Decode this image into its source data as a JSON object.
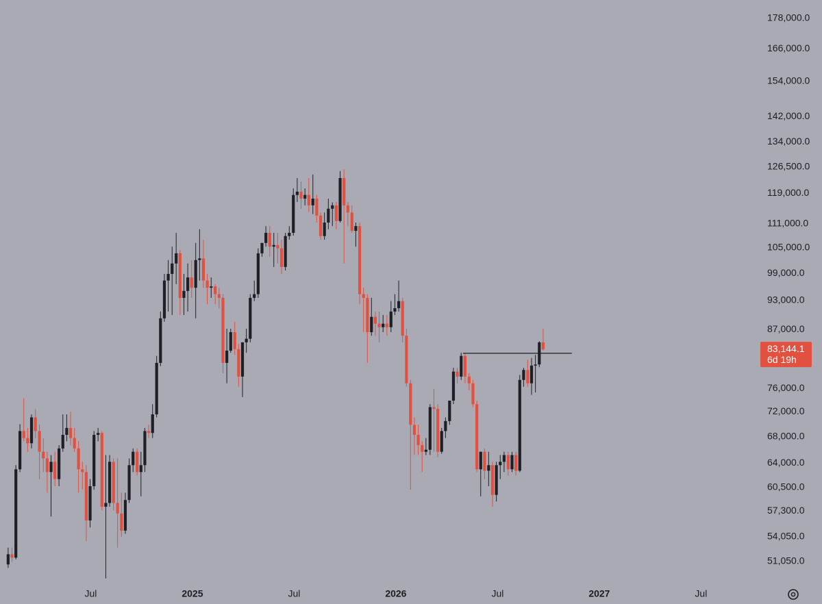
{
  "chart_data": {
    "type": "candlestick",
    "log_scale": true,
    "grid": false,
    "up_color": "#1f1f26",
    "down_color": "#e2503f",
    "xlim": [
      2024.054,
      2027.758
    ],
    "ylim": [
      48300,
      185700
    ],
    "xticks": [
      {
        "value": 2024.5,
        "label": "Jul"
      },
      2025,
      {
        "value": 2025.5,
        "label": "Jul"
      },
      2026,
      {
        "value": 2026.5,
        "label": "Jul"
      },
      2027,
      {
        "value": 2027.5,
        "label": "Jul"
      }
    ],
    "yticks": [
      {
        "value": 178000,
        "label": "178,000.0"
      },
      {
        "value": 166000,
        "label": "166,000.0"
      },
      {
        "value": 154000,
        "label": "154,000.0"
      },
      {
        "value": 142000,
        "label": "142,000.0"
      },
      {
        "value": 134000,
        "label": "134,000.0"
      },
      {
        "value": 126500,
        "label": "126,500.0"
      },
      {
        "value": 119000,
        "label": "119,000.0"
      },
      {
        "value": 111000,
        "label": "111,000.0"
      },
      {
        "value": 105000,
        "label": "105,000.0"
      },
      {
        "value": 99000,
        "label": "99,000.0"
      },
      {
        "value": 93000,
        "label": "93,000.0"
      },
      {
        "value": 87000,
        "label": "87,000.0"
      },
      {
        "value": 76000,
        "label": "76,000.0"
      },
      {
        "value": 72000,
        "label": "72,000.0"
      },
      {
        "value": 68000,
        "label": "68,000.0"
      },
      {
        "value": 64000,
        "label": "64,000.0"
      },
      {
        "value": 60500,
        "label": "60,500.0"
      },
      {
        "value": 57300,
        "label": "57,300.0"
      },
      {
        "value": 54050,
        "label": "54,050.0"
      },
      {
        "value": 51050,
        "label": "51,050.0"
      }
    ],
    "x": [
      2024.094,
      2024.113,
      2024.132,
      2024.152,
      2024.171,
      2024.19,
      2024.209,
      2024.228,
      2024.248,
      2024.267,
      2024.286,
      2024.305,
      2024.324,
      2024.344,
      2024.363,
      2024.382,
      2024.401,
      2024.42,
      2024.44,
      2024.459,
      2024.478,
      2024.497,
      2024.516,
      2024.536,
      2024.555,
      2024.574,
      2024.593,
      2024.612,
      2024.632,
      2024.651,
      2024.67,
      2024.689,
      2024.708,
      2024.728,
      2024.747,
      2024.766,
      2024.785,
      2024.804,
      2024.824,
      2024.843,
      2024.862,
      2024.881,
      2024.9,
      2024.92,
      2024.939,
      2024.958,
      2024.977,
      2024.996,
      2025.016,
      2025.035,
      2025.054,
      2025.073,
      2025.092,
      2025.112,
      2025.131,
      2025.15,
      2025.169,
      2025.188,
      2025.208,
      2025.227,
      2025.246,
      2025.265,
      2025.284,
      2025.304,
      2025.323,
      2025.342,
      2025.361,
      2025.38,
      2025.4,
      2025.419,
      2025.438,
      2025.457,
      2025.476,
      2025.496,
      2025.515,
      2025.534,
      2025.553,
      2025.572,
      2025.592,
      2025.611,
      2025.63,
      2025.649,
      2025.668,
      2025.688,
      2025.707,
      2025.726,
      2025.745,
      2025.764,
      2025.784,
      2025.803,
      2025.822,
      2025.841,
      2025.86,
      2025.88,
      2025.899,
      2025.918,
      2025.937,
      2025.956,
      2025.976,
      2025.995,
      2026.014,
      2026.033,
      2026.052,
      2026.072,
      2026.091,
      2026.11,
      2026.129,
      2026.148,
      2026.168,
      2026.187,
      2026.206,
      2026.225,
      2026.244,
      2026.264,
      2026.283,
      2026.302,
      2026.321,
      2026.34,
      2026.36,
      2026.379,
      2026.398,
      2026.417,
      2026.436,
      2026.456,
      2026.475,
      2026.494,
      2026.513,
      2026.532,
      2026.552,
      2026.571,
      2026.59,
      2026.609,
      2026.628,
      2026.648,
      2026.667,
      2026.686,
      2026.705,
      2026.724
    ],
    "open": [
      50700,
      51900,
      51500,
      63100,
      68900,
      67800,
      67000,
      71100,
      68900,
      65700,
      64700,
      62700,
      64200,
      61700,
      66200,
      68300,
      69400,
      67800,
      66200,
      63100,
      62700,
      56100,
      60700,
      68300,
      68600,
      57900,
      58400,
      64200,
      58400,
      57000,
      54800,
      58800,
      63700,
      65700,
      62700,
      63700,
      68900,
      68600,
      71600,
      80600,
      89300,
      97400,
      98900,
      101300,
      103700,
      93600,
      95100,
      98100,
      95800,
      102100,
      102500,
      97400,
      95800,
      96100,
      94400,
      93600,
      80600,
      82900,
      86500,
      83200,
      78100,
      84500,
      85200,
      93600,
      94400,
      103700,
      106200,
      108700,
      105300,
      105700,
      104900,
      100500,
      107900,
      108700,
      118600,
      119500,
      117600,
      118600,
      115800,
      117600,
      113100,
      107900,
      111300,
      114900,
      115800,
      111700,
      123300,
      115800,
      113900,
      109200,
      110400,
      94400,
      93600,
      86500,
      89600,
      88200,
      87500,
      88200,
      87500,
      90700,
      91400,
      92900,
      85800,
      76900,
      69900,
      68300,
      66700,
      65700,
      66000,
      72800,
      72500,
      65700,
      68900,
      70500,
      73900,
      79000,
      78100,
      81900,
      78100,
      76900,
      73300,
      63100,
      65700,
      62900,
      63700,
      59500,
      63700,
      64200,
      65200,
      63100,
      65200,
      62900,
      77500,
      79300,
      76900,
      80100,
      80300,
      84500
    ],
    "high": [
      52700,
      52700,
      63700,
      70000,
      74300,
      69400,
      71600,
      72500,
      69900,
      67800,
      65700,
      65200,
      65700,
      66700,
      71600,
      71600,
      72000,
      69400,
      67300,
      64200,
      63700,
      61700,
      68900,
      69400,
      68900,
      65200,
      65200,
      64700,
      64700,
      59800,
      59800,
      64700,
      66200,
      66200,
      65700,
      69400,
      69900,
      73300,
      81900,
      90700,
      98900,
      102100,
      105300,
      108700,
      104500,
      98900,
      101300,
      102100,
      106200,
      109600,
      107000,
      98900,
      98100,
      96600,
      95800,
      94400,
      87200,
      87200,
      88600,
      84200,
      84500,
      87200,
      94400,
      97400,
      104900,
      106200,
      110400,
      110400,
      108700,
      108700,
      107000,
      108700,
      110400,
      120400,
      123300,
      122300,
      120400,
      123300,
      124300,
      118600,
      113900,
      113900,
      117600,
      116600,
      116700,
      125300,
      125800,
      116700,
      115800,
      111300,
      111300,
      95800,
      94400,
      93600,
      90700,
      90700,
      90000,
      90000,
      92900,
      94400,
      97400,
      93600,
      87200,
      77500,
      71100,
      69900,
      67300,
      67800,
      73300,
      75900,
      73300,
      69400,
      71100,
      73600,
      79700,
      79700,
      82500,
      82500,
      78700,
      77500,
      73900,
      65700,
      66200,
      65700,
      64200,
      64200,
      65200,
      65700,
      65700,
      65700,
      65700,
      78400,
      79700,
      81200,
      81500,
      82100,
      84700,
      87200
    ],
    "low": [
      50300,
      51000,
      51300,
      62700,
      67300,
      65700,
      66200,
      67800,
      61700,
      62700,
      59800,
      56600,
      60700,
      60700,
      65700,
      67300,
      66700,
      65700,
      59800,
      60200,
      53500,
      55200,
      60200,
      67300,
      57400,
      49100,
      57900,
      57400,
      52700,
      54000,
      54400,
      58400,
      62700,
      62200,
      59300,
      62700,
      67800,
      67800,
      71100,
      80000,
      88600,
      90700,
      90000,
      96600,
      90000,
      90000,
      90700,
      93600,
      89300,
      97400,
      95800,
      92200,
      93600,
      92200,
      91400,
      78700,
      76900,
      82500,
      82100,
      76300,
      74500,
      82500,
      84500,
      92900,
      93600,
      102900,
      105300,
      102900,
      100500,
      101300,
      98900,
      99700,
      107000,
      108000,
      116700,
      114900,
      115800,
      114000,
      113500,
      111300,
      107000,
      107000,
      109600,
      110400,
      109600,
      111300,
      101300,
      110400,
      108700,
      105300,
      92200,
      86500,
      80600,
      85800,
      85800,
      84500,
      86500,
      85800,
      86500,
      90000,
      90700,
      84500,
      76300,
      60200,
      65200,
      65200,
      62700,
      65200,
      65200,
      65700,
      64900,
      65400,
      67800,
      69900,
      73300,
      76900,
      77500,
      76900,
      75700,
      72800,
      62700,
      59300,
      61700,
      60700,
      57900,
      58600,
      61700,
      62700,
      62200,
      62700,
      62200,
      62700,
      76300,
      76300,
      74900,
      75300,
      79800,
      82900
    ],
    "close": [
      51900,
      51500,
      63100,
      68900,
      67800,
      67000,
      71100,
      68900,
      65700,
      64700,
      62700,
      64200,
      61700,
      66200,
      68300,
      69400,
      67800,
      66200,
      63100,
      62700,
      56100,
      60700,
      68300,
      68600,
      57900,
      58400,
      64200,
      58400,
      57000,
      54800,
      58800,
      63700,
      65700,
      62700,
      63700,
      68900,
      68600,
      71600,
      80600,
      89300,
      97400,
      98900,
      101300,
      103700,
      93600,
      95100,
      98100,
      95800,
      102100,
      102500,
      97400,
      95800,
      96100,
      94400,
      93600,
      80600,
      82900,
      86500,
      83200,
      78100,
      84500,
      85200,
      93600,
      94400,
      103700,
      106200,
      108700,
      105300,
      105700,
      104900,
      100500,
      107900,
      108700,
      118600,
      119500,
      117600,
      118600,
      115800,
      117600,
      113100,
      107900,
      111300,
      114900,
      115800,
      111700,
      123300,
      115800,
      113900,
      109200,
      110400,
      94400,
      93600,
      86500,
      89600,
      88200,
      87500,
      88200,
      87500,
      90700,
      91400,
      92900,
      85800,
      76900,
      69900,
      68300,
      66700,
      65700,
      66000,
      72800,
      72500,
      65700,
      68900,
      70500,
      73900,
      79000,
      78100,
      81900,
      78100,
      76900,
      73300,
      63100,
      65700,
      62900,
      63700,
      59500,
      63700,
      64200,
      65200,
      63100,
      65200,
      62900,
      77500,
      79300,
      76900,
      80100,
      80300,
      84500,
      83144.1
    ],
    "hline": {
      "value": 82400,
      "x": [
        2026.33,
        2026.865
      ]
    },
    "last_price": {
      "value": 83144.1,
      "label": "83,144.1"
    },
    "countdown": "6d 19h"
  }
}
